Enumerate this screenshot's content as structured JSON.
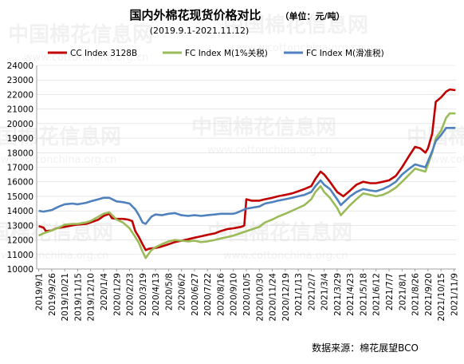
{
  "chart_data": {
    "type": "line",
    "title": "国内外棉花现货价格对比",
    "unit_label": "（单位：元/吨）",
    "subtitle": "(2019.9.1-2021.11.12)",
    "ylim": [
      10000,
      24000
    ],
    "y_ticks": [
      10000,
      11000,
      12000,
      13000,
      14000,
      15000,
      16000,
      17000,
      18000,
      19000,
      20000,
      21000,
      22000,
      23000,
      24000
    ],
    "x_ticks": [
      "2019/9/1",
      "2019/9/26",
      "2019/10/21",
      "2019/11/15",
      "2019/12/10",
      "2020/1/4",
      "2020/1/29",
      "2020/2/23",
      "2020/3/19",
      "2020/4/13",
      "2020/5/8",
      "2020/6/2",
      "2020/6/27",
      "2020/7/22",
      "2020/8/16",
      "2020/9/10",
      "2020/10/5",
      "2020/10/30",
      "2020/11/24",
      "2020/12/19",
      "2021/1/13",
      "2021/2/7",
      "2021/3/4",
      "2021/3/29",
      "2021/4/23",
      "2021/5/18",
      "2021/6/12",
      "2021/7/7",
      "2021/8/1",
      "2021/8/26",
      "2021/9/20",
      "2021/10/15",
      "2021/11/9"
    ],
    "legend_placement": "top",
    "source": "数据来源：棉花展望BCO",
    "watermark_text": "中国棉花信息网",
    "watermark_url": "www.cottonchina.org.cn",
    "series": [
      {
        "name": "CC Index 3128B",
        "color": "#c00000",
        "points": [
          [
            "2019/9/1",
            12950
          ],
          [
            "2019/9/10",
            12850
          ],
          [
            "2019/9/15",
            12600
          ],
          [
            "2019/9/26",
            12650
          ],
          [
            "2019/10/5",
            12800
          ],
          [
            "2019/10/21",
            12900
          ],
          [
            "2019/11/5",
            13000
          ],
          [
            "2019/11/15",
            13050
          ],
          [
            "2019/12/1",
            13100
          ],
          [
            "2019/12/10",
            13200
          ],
          [
            "2019/12/25",
            13400
          ],
          [
            "2020/1/4",
            13650
          ],
          [
            "2020/1/15",
            13800
          ],
          [
            "2020/1/20",
            13500
          ],
          [
            "2020/1/29",
            13450
          ],
          [
            "2020/2/10",
            13450
          ],
          [
            "2020/2/20",
            13400
          ],
          [
            "2020/2/28",
            13300
          ],
          [
            "2020/3/5",
            12600
          ],
          [
            "2020/3/12",
            12200
          ],
          [
            "2020/3/19",
            11700
          ],
          [
            "2020/3/25",
            11300
          ],
          [
            "2020/4/1",
            11400
          ],
          [
            "2020/4/13",
            11450
          ],
          [
            "2020/4/25",
            11550
          ],
          [
            "2020/5/8",
            11700
          ],
          [
            "2020/5/20",
            11850
          ],
          [
            "2020/6/2",
            11950
          ],
          [
            "2020/6/15",
            12050
          ],
          [
            "2020/6/27",
            12150
          ],
          [
            "2020/7/10",
            12250
          ],
          [
            "2020/7/22",
            12350
          ],
          [
            "2020/8/5",
            12450
          ],
          [
            "2020/8/16",
            12600
          ],
          [
            "2020/8/30",
            12750
          ],
          [
            "2020/9/10",
            12800
          ],
          [
            "2020/9/25",
            12900
          ],
          [
            "2020/10/1",
            13000
          ],
          [
            "2020/10/5",
            14800
          ],
          [
            "2020/10/15",
            14700
          ],
          [
            "2020/10/30",
            14700
          ],
          [
            "2020/11/10",
            14800
          ],
          [
            "2020/11/24",
            14900
          ],
          [
            "2020/12/5",
            15000
          ],
          [
            "2020/12/19",
            15100
          ],
          [
            "2021/1/1",
            15200
          ],
          [
            "2021/1/13",
            15350
          ],
          [
            "2021/1/25",
            15500
          ],
          [
            "2021/2/7",
            15700
          ],
          [
            "2021/2/15",
            16200
          ],
          [
            "2021/2/25",
            16700
          ],
          [
            "2021/3/4",
            16500
          ],
          [
            "2021/3/15",
            16000
          ],
          [
            "2021/3/29",
            15300
          ],
          [
            "2021/4/10",
            15000
          ],
          [
            "2021/4/23",
            15400
          ],
          [
            "2021/5/5",
            15800
          ],
          [
            "2021/5/18",
            16000
          ],
          [
            "2021/6/1",
            15900
          ],
          [
            "2021/6/12",
            15900
          ],
          [
            "2021/6/25",
            16000
          ],
          [
            "2021/7/7",
            16100
          ],
          [
            "2021/7/20",
            16400
          ],
          [
            "2021/8/1",
            17000
          ],
          [
            "2021/8/15",
            17800
          ],
          [
            "2021/8/26",
            18400
          ],
          [
            "2021/9/5",
            18300
          ],
          [
            "2021/9/15",
            18000
          ],
          [
            "2021/9/20",
            18300
          ],
          [
            "2021/9/28",
            19300
          ],
          [
            "2021/10/5",
            21500
          ],
          [
            "2021/10/15",
            21800
          ],
          [
            "2021/10/25",
            22200
          ],
          [
            "2021/11/1",
            22350
          ],
          [
            "2021/11/12",
            22300
          ]
        ]
      },
      {
        "name": "FC Index M(1%关税)",
        "color": "#9bbb59",
        "points": [
          [
            "2019/9/1",
            12300
          ],
          [
            "2019/9/10",
            12450
          ],
          [
            "2019/9/26",
            12650
          ],
          [
            "2019/10/10",
            12850
          ],
          [
            "2019/10/21",
            13050
          ],
          [
            "2019/11/5",
            13100
          ],
          [
            "2019/11/15",
            13100
          ],
          [
            "2019/12/1",
            13200
          ],
          [
            "2019/12/10",
            13300
          ],
          [
            "2019/12/25",
            13600
          ],
          [
            "2020/1/4",
            13800
          ],
          [
            "2020/1/15",
            13900
          ],
          [
            "2020/1/29",
            13400
          ],
          [
            "2020/2/10",
            13200
          ],
          [
            "2020/2/23",
            12800
          ],
          [
            "2020/3/5",
            12200
          ],
          [
            "2020/3/12",
            11800
          ],
          [
            "2020/3/19",
            11200
          ],
          [
            "2020/3/25",
            10750
          ],
          [
            "2020/4/5",
            11300
          ],
          [
            "2020/4/13",
            11500
          ],
          [
            "2020/4/25",
            11700
          ],
          [
            "2020/5/8",
            11900
          ],
          [
            "2020/5/20",
            12000
          ],
          [
            "2020/6/2",
            11950
          ],
          [
            "2020/6/15",
            11900
          ],
          [
            "2020/6/27",
            11950
          ],
          [
            "2020/7/10",
            11850
          ],
          [
            "2020/7/22",
            11900
          ],
          [
            "2020/8/5",
            12000
          ],
          [
            "2020/8/16",
            12100
          ],
          [
            "2020/8/30",
            12200
          ],
          [
            "2020/9/10",
            12300
          ],
          [
            "2020/10/5",
            12600
          ],
          [
            "2020/10/30",
            12900
          ],
          [
            "2020/11/10",
            13200
          ],
          [
            "2020/11/24",
            13400
          ],
          [
            "2020/12/5",
            13600
          ],
          [
            "2020/12/19",
            13800
          ],
          [
            "2021/1/1",
            14000
          ],
          [
            "2021/1/13",
            14200
          ],
          [
            "2021/1/25",
            14400
          ],
          [
            "2021/2/7",
            14800
          ],
          [
            "2021/2/15",
            15300
          ],
          [
            "2021/2/25",
            15700
          ],
          [
            "2021/3/4",
            15300
          ],
          [
            "2021/3/15",
            14900
          ],
          [
            "2021/3/29",
            14200
          ],
          [
            "2021/4/5",
            13700
          ],
          [
            "2021/4/23",
            14400
          ],
          [
            "2021/5/5",
            14800
          ],
          [
            "2021/5/18",
            15200
          ],
          [
            "2021/6/1",
            15100
          ],
          [
            "2021/6/12",
            15000
          ],
          [
            "2021/6/25",
            15100
          ],
          [
            "2021/7/7",
            15300
          ],
          [
            "2021/7/20",
            15600
          ],
          [
            "2021/8/1",
            16000
          ],
          [
            "2021/8/15",
            16500
          ],
          [
            "2021/8/26",
            16900
          ],
          [
            "2021/9/5",
            16800
          ],
          [
            "2021/9/15",
            16700
          ],
          [
            "2021/9/20",
            17200
          ],
          [
            "2021/9/28",
            18000
          ],
          [
            "2021/10/5",
            19000
          ],
          [
            "2021/10/15",
            19500
          ],
          [
            "2021/10/25",
            20400
          ],
          [
            "2021/11/1",
            20700
          ],
          [
            "2021/11/12",
            20700
          ]
        ]
      },
      {
        "name": "FC Index M(滑准税)",
        "color": "#4f81bd",
        "points": [
          [
            "2019/9/1",
            14000
          ],
          [
            "2019/9/10",
            13950
          ],
          [
            "2019/9/26",
            14050
          ],
          [
            "2019/10/10",
            14300
          ],
          [
            "2019/10/21",
            14450
          ],
          [
            "2019/11/5",
            14500
          ],
          [
            "2019/11/15",
            14450
          ],
          [
            "2019/12/1",
            14550
          ],
          [
            "2019/12/10",
            14650
          ],
          [
            "2019/12/25",
            14800
          ],
          [
            "2020/1/4",
            14900
          ],
          [
            "2020/1/15",
            14900
          ],
          [
            "2020/1/29",
            14650
          ],
          [
            "2020/2/10",
            14600
          ],
          [
            "2020/2/23",
            14500
          ],
          [
            "2020/3/5",
            14100
          ],
          [
            "2020/3/12",
            13700
          ],
          [
            "2020/3/19",
            13200
          ],
          [
            "2020/3/25",
            13100
          ],
          [
            "2020/4/5",
            13600
          ],
          [
            "2020/4/13",
            13750
          ],
          [
            "2020/4/25",
            13700
          ],
          [
            "2020/5/8",
            13800
          ],
          [
            "2020/5/20",
            13850
          ],
          [
            "2020/6/2",
            13700
          ],
          [
            "2020/6/15",
            13650
          ],
          [
            "2020/6/27",
            13700
          ],
          [
            "2020/7/10",
            13650
          ],
          [
            "2020/7/22",
            13700
          ],
          [
            "2020/8/5",
            13750
          ],
          [
            "2020/8/16",
            13800
          ],
          [
            "2020/8/30",
            13800
          ],
          [
            "2020/9/10",
            13800
          ],
          [
            "2020/9/15",
            13850
          ],
          [
            "2020/10/5",
            14150
          ],
          [
            "2020/10/30",
            14300
          ],
          [
            "2020/11/10",
            14500
          ],
          [
            "2020/11/24",
            14600
          ],
          [
            "2020/12/5",
            14700
          ],
          [
            "2020/12/19",
            14800
          ],
          [
            "2021/1/1",
            14900
          ],
          [
            "2021/1/13",
            15000
          ],
          [
            "2021/1/25",
            15100
          ],
          [
            "2021/2/7",
            15300
          ],
          [
            "2021/2/15",
            15700
          ],
          [
            "2021/2/25",
            16100
          ],
          [
            "2021/3/4",
            15800
          ],
          [
            "2021/3/15",
            15500
          ],
          [
            "2021/3/29",
            14800
          ],
          [
            "2021/4/5",
            14400
          ],
          [
            "2021/4/23",
            15000
          ],
          [
            "2021/5/5",
            15300
          ],
          [
            "2021/5/18",
            15500
          ],
          [
            "2021/6/1",
            15400
          ],
          [
            "2021/6/12",
            15350
          ],
          [
            "2021/6/25",
            15500
          ],
          [
            "2021/7/7",
            15700
          ],
          [
            "2021/7/20",
            16000
          ],
          [
            "2021/8/1",
            16500
          ],
          [
            "2021/8/15",
            16900
          ],
          [
            "2021/8/26",
            17200
          ],
          [
            "2021/9/5",
            17100
          ],
          [
            "2021/9/15",
            17000
          ],
          [
            "2021/9/20",
            17400
          ],
          [
            "2021/9/28",
            18100
          ],
          [
            "2021/10/5",
            18800
          ],
          [
            "2021/10/15",
            19200
          ],
          [
            "2021/10/25",
            19700
          ],
          [
            "2021/11/1",
            19700
          ],
          [
            "2021/11/12",
            19700
          ]
        ]
      }
    ]
  }
}
